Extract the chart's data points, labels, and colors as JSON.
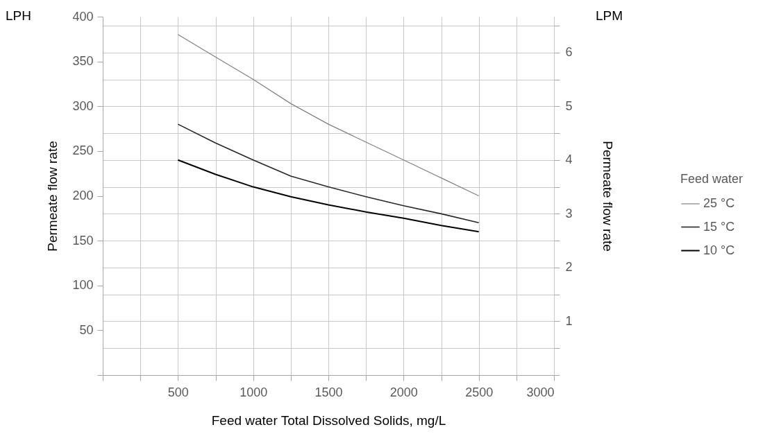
{
  "chart_data": {
    "type": "line",
    "xlabel": "Feed water Total Dissolved Solids, mg/L",
    "ylabel": "Permeate flow rate",
    "y2label": "Permeate flow rate",
    "legend_title": "Feed water",
    "annotations": [
      "LPH",
      "LPM"
    ],
    "x": [
      500,
      750,
      1000,
      1250,
      1500,
      1750,
      2000,
      2250,
      2500
    ],
    "series": [
      {
        "name": "25 °C",
        "color": "#808080",
        "values": [
          380,
          355,
          330,
          303,
          280,
          260,
          240,
          220,
          200
        ]
      },
      {
        "name": "15 °C",
        "color": "#262626",
        "values": [
          280,
          259,
          240,
          222,
          210,
          199,
          189,
          180,
          170
        ]
      },
      {
        "name": "10 °C",
        "color": "#000000",
        "values": [
          240,
          224,
          210,
          199,
          190,
          182,
          175,
          167,
          160
        ]
      }
    ],
    "xlim": [
      0,
      3000
    ],
    "xticks": [
      {
        "value": 0,
        "label": null
      },
      {
        "value": 250,
        "label": null
      },
      500,
      {
        "value": 750,
        "label": null
      },
      1000,
      {
        "value": 1250,
        "label": null
      },
      1500,
      {
        "value": 1750,
        "label": null
      },
      2000,
      {
        "value": 2250,
        "label": null
      },
      2500,
      {
        "value": 2750,
        "label": null
      },
      3000
    ],
    "ylim": [
      0,
      400
    ],
    "yticks": [
      {
        "value": 0,
        "label": null
      },
      50,
      100,
      150,
      200,
      250,
      300,
      350,
      400
    ],
    "y2lim": [
      0,
      6.67
    ],
    "y2ticks": [
      {
        "value": 0,
        "label": null
      },
      {
        "value": 0.5,
        "label": null
      },
      1,
      {
        "value": 1.5,
        "label": null
      },
      2,
      {
        "value": 2.5,
        "label": null
      },
      3,
      {
        "value": 3.5,
        "label": null
      },
      4,
      {
        "value": 4.5,
        "label": null
      },
      5,
      {
        "value": 5.5,
        "label": null
      },
      6,
      {
        "value": 6.5,
        "label": null
      }
    ],
    "grid": true,
    "legend": "right",
    "marker": "none",
    "line_style": "solid"
  }
}
